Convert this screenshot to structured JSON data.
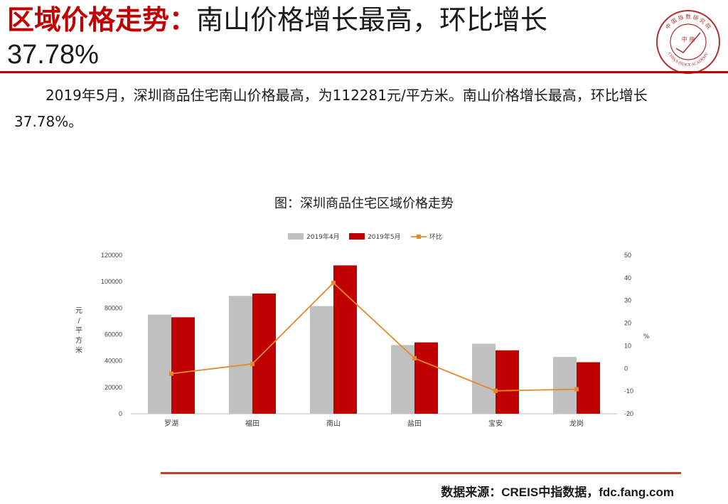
{
  "header": {
    "title_highlight": "区域价格走势：",
    "title_main": "南山价格增长最高，环比增长",
    "title_percent": "37.78%"
  },
  "logo": {
    "arc_text": "中 国 指 数 研 究 院",
    "center_text": "中 指",
    "english_text": "CHINA INDEX ACADEMY"
  },
  "body": {
    "paragraph": "2019年5月，深圳商品住宅南山价格最高，为112281元/平方米。南山价格增长最高，环比增长37.78%。"
  },
  "chart_title": "图：深圳商品住宅区域价格走势",
  "chart_data": {
    "type": "bar",
    "categories": [
      "罗湖",
      "福田",
      "南山",
      "盐田",
      "宝安",
      "龙岗"
    ],
    "series": [
      {
        "name": "2019年4月",
        "kind": "bar",
        "axis": "left",
        "color": "#c0c0c0",
        "values": [
          75000,
          89200,
          81500,
          52000,
          53000,
          43000
        ]
      },
      {
        "name": "2019年5月",
        "kind": "bar",
        "axis": "left",
        "color": "#c00000",
        "values": [
          73000,
          91000,
          112281,
          54000,
          48000,
          39000
        ]
      },
      {
        "name": "环比",
        "kind": "line",
        "axis": "right",
        "color": "#e58a2b",
        "values": [
          -2.3,
          2.0,
          37.78,
          4.5,
          -9.9,
          -9.2
        ]
      }
    ],
    "y_left": {
      "label": "元/平方米",
      "min": 0,
      "max": 120000,
      "ticks": [
        0,
        20000,
        40000,
        60000,
        80000,
        100000,
        120000
      ]
    },
    "y_right": {
      "label": "%",
      "min": -20,
      "max": 50,
      "ticks": [
        -20,
        -10,
        0,
        10,
        20,
        30,
        40,
        50
      ]
    },
    "legend_position": "top-center",
    "grid": false
  },
  "footer": {
    "source": "数据来源：CREIS中指数据，fdc.fang.com"
  }
}
